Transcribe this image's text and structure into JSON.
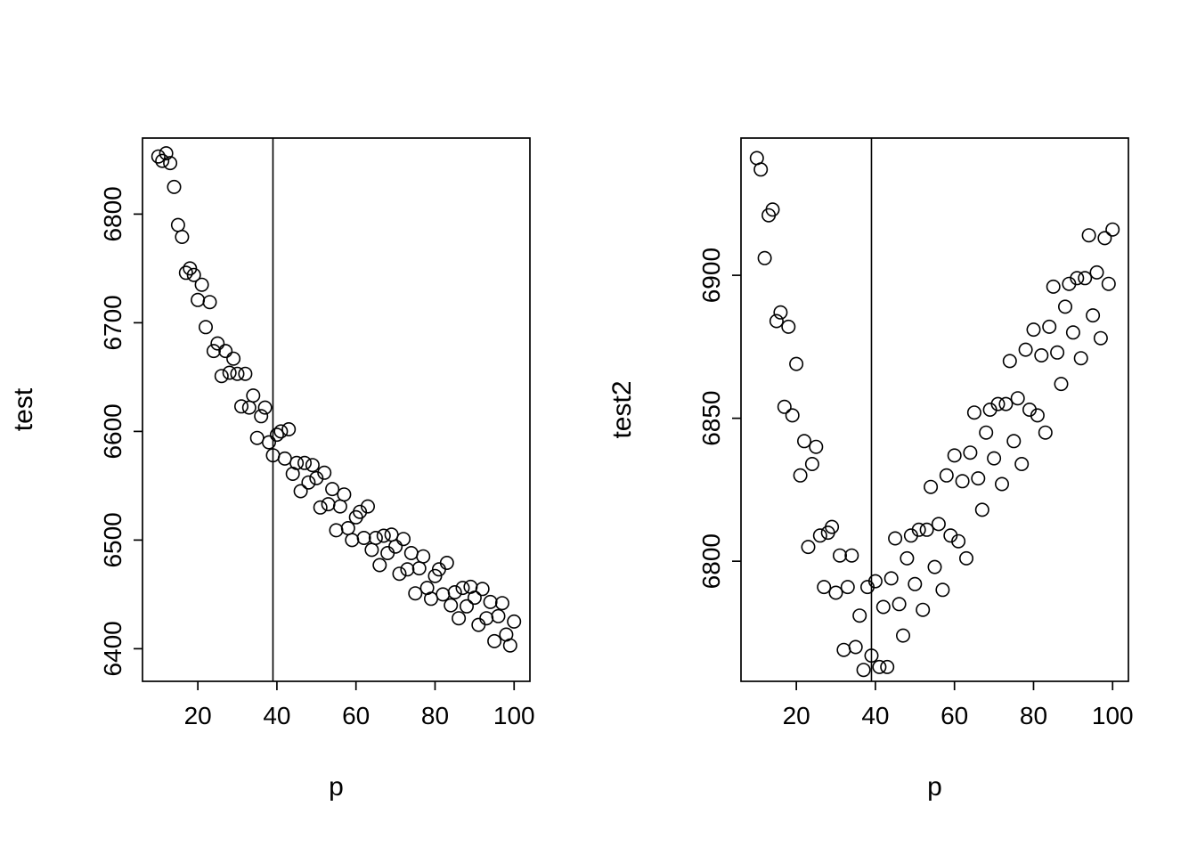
{
  "page": {
    "background": "#ffffff",
    "foreground": "#000000"
  },
  "chart_data": [
    {
      "type": "scatter",
      "title": "",
      "xlabel": "p",
      "ylabel": "test",
      "xlim": [
        6,
        104
      ],
      "ylim": [
        6370,
        6870
      ],
      "xticks": [
        20,
        40,
        60,
        80,
        100
      ],
      "yticks": [
        6400,
        6500,
        6600,
        6700,
        6800
      ],
      "vline_x": 39,
      "marker": "open-circle",
      "color": "#000000",
      "grid": false,
      "x": [
        10,
        11,
        12,
        13,
        14,
        15,
        16,
        17,
        18,
        19,
        20,
        21,
        22,
        23,
        24,
        25,
        26,
        27,
        28,
        29,
        30,
        31,
        32,
        33,
        34,
        35,
        36,
        37,
        38,
        39,
        40,
        41,
        42,
        43,
        44,
        45,
        46,
        47,
        48,
        49,
        50,
        51,
        52,
        53,
        54,
        55,
        56,
        57,
        58,
        59,
        60,
        61,
        62,
        63,
        64,
        65,
        66,
        67,
        68,
        69,
        70,
        71,
        72,
        73,
        74,
        75,
        76,
        77,
        78,
        79,
        80,
        81,
        82,
        83,
        84,
        85,
        86,
        87,
        88,
        89,
        90,
        91,
        92,
        93,
        94,
        95,
        96,
        97,
        98,
        99,
        100
      ],
      "y": [
        6853,
        6849,
        6856,
        6847,
        6825,
        6790,
        6779,
        6746,
        6750,
        6744,
        6721,
        6735,
        6696,
        6719,
        6674,
        6681,
        6651,
        6674,
        6654,
        6667,
        6653,
        6623,
        6653,
        6622,
        6633,
        6594,
        6614,
        6622,
        6590,
        6578,
        6597,
        6600,
        6575,
        6602,
        6561,
        6571,
        6545,
        6571,
        6553,
        6569,
        6557,
        6530,
        6562,
        6533,
        6547,
        6509,
        6531,
        6542,
        6511,
        6500,
        6521,
        6526,
        6502,
        6531,
        6491,
        6502,
        6477,
        6504,
        6488,
        6505,
        6494,
        6469,
        6501,
        6473,
        6488,
        6451,
        6474,
        6485,
        6456,
        6446,
        6467,
        6473,
        6450,
        6479,
        6440,
        6452,
        6428,
        6456,
        6439,
        6457,
        6447,
        6422,
        6455,
        6428,
        6443,
        6407,
        6430,
        6442,
        6413,
        6403,
        6425
      ]
    },
    {
      "type": "scatter",
      "title": "",
      "xlabel": "p",
      "ylabel": "test2",
      "xlim": [
        6,
        104
      ],
      "ylim": [
        6758,
        6948
      ],
      "xticks": [
        20,
        40,
        60,
        80,
        100
      ],
      "yticks": [
        6800,
        6850,
        6900
      ],
      "vline_x": 39,
      "marker": "open-circle",
      "color": "#000000",
      "grid": false,
      "x": [
        10,
        11,
        12,
        13,
        14,
        15,
        16,
        17,
        18,
        19,
        20,
        21,
        22,
        23,
        24,
        25,
        26,
        27,
        28,
        29,
        30,
        31,
        32,
        33,
        34,
        35,
        36,
        37,
        38,
        39,
        40,
        41,
        42,
        43,
        44,
        45,
        46,
        47,
        48,
        49,
        50,
        51,
        52,
        53,
        54,
        55,
        56,
        57,
        58,
        59,
        60,
        61,
        62,
        63,
        64,
        65,
        66,
        67,
        68,
        69,
        70,
        71,
        72,
        73,
        74,
        75,
        76,
        77,
        78,
        79,
        80,
        81,
        82,
        83,
        84,
        85,
        86,
        87,
        88,
        89,
        90,
        91,
        92,
        93,
        94,
        95,
        96,
        97,
        98,
        99,
        100
      ],
      "y": [
        6941,
        6937,
        6906,
        6921,
        6923,
        6884,
        6887,
        6854,
        6882,
        6851,
        6869,
        6830,
        6842,
        6805,
        6834,
        6840,
        6809,
        6791,
        6810,
        6812,
        6789,
        6802,
        6769,
        6791,
        6802,
        6770,
        6781,
        6762,
        6791,
        6767,
        6793,
        6763,
        6784,
        6763,
        6794,
        6808,
        6785,
        6774,
        6801,
        6809,
        6792,
        6811,
        6783,
        6811,
        6826,
        6798,
        6813,
        6790,
        6830,
        6809,
        6837,
        6807,
        6828,
        6801,
        6838,
        6852,
        6829,
        6818,
        6845,
        6853,
        6836,
        6855,
        6827,
        6855,
        6870,
        6842,
        6857,
        6834,
        6874,
        6853,
        6881,
        6851,
        6872,
        6845,
        6882,
        6896,
        6873,
        6862,
        6889,
        6897,
        6880,
        6899,
        6871,
        6899,
        6914,
        6886,
        6901,
        6878,
        6913,
        6897,
        6916
      ]
    }
  ]
}
